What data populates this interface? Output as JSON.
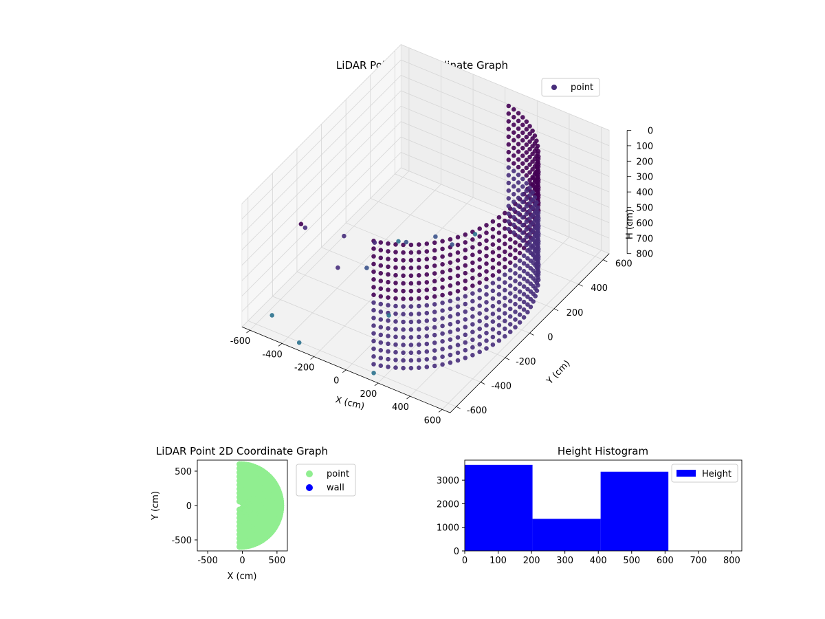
{
  "colors": {
    "scatter3d_cmap": [
      "#440154",
      "#472d7b",
      "#3b528b",
      "#2c728e",
      "#21918c"
    ],
    "scatter2d_point": "#90ee90",
    "scatter2d_wall": "#0000ff",
    "histogram": "#0000ff"
  },
  "chart_data": [
    {
      "type": "scatter3d",
      "title": "LiDAR Point 3D Coordinate Graph",
      "xlabel": "X (cm)",
      "ylabel": "Y (cm)",
      "zlabel": "H (cm)",
      "xlim": [
        -650,
        650
      ],
      "ylim": [
        -650,
        650
      ],
      "zlim": [
        0,
        800
      ],
      "z_inverted": true,
      "xticks": [
        -600,
        -400,
        -200,
        0,
        200,
        400,
        600
      ],
      "yticks": [
        -600,
        -400,
        -200,
        0,
        200,
        400,
        600
      ],
      "zticks": [
        0,
        100,
        200,
        300,
        400,
        500,
        600,
        700,
        800
      ],
      "grid": true,
      "legend": {
        "position": "top-right",
        "entries": [
          "point"
        ]
      },
      "series": [
        {
          "name": "point",
          "description_values": "curved wall arc: x = 560*cos(t), y = 560*sin(t) for t in -80..80 deg, h from 0 to 800",
          "arc": {
            "radius": 560,
            "angle_start_deg": -80,
            "angle_end_deg": 80,
            "h_range": [
              0,
              800
            ]
          },
          "sample_points": [
            [
              -380,
              -520,
              120
            ],
            [
              -400,
              -460,
              200
            ],
            [
              -120,
              -560,
              260
            ],
            [
              -280,
              -300,
              330
            ],
            [
              -150,
              -220,
              380
            ],
            [
              -100,
              -350,
              420
            ],
            [
              -60,
              -80,
              450
            ],
            [
              120,
              60,
              500
            ],
            [
              -30,
              120,
              560
            ],
            [
              -200,
              40,
              600
            ],
            [
              80,
              300,
              640
            ],
            [
              30,
              -340,
              680
            ],
            [
              -500,
              -600,
              700
            ],
            [
              -300,
              -640,
              760
            ],
            [
              150,
              -620,
              780
            ]
          ]
        }
      ]
    },
    {
      "type": "scatter",
      "title": "LiDAR Point 2D Coordinate Graph",
      "xlabel": "X (cm)",
      "ylabel": "Y (cm)",
      "xlim": [
        -650,
        650
      ],
      "ylim": [
        -660,
        660
      ],
      "xticks": [
        -500,
        0,
        500
      ],
      "yticks": [
        -500,
        0,
        500
      ],
      "legend": {
        "position": "outside-right",
        "entries": [
          "point",
          "wall"
        ]
      },
      "series": [
        {
          "name": "point",
          "description": "filled half-disc of points, x >= -600, radius ~600"
        },
        {
          "name": "wall",
          "points": []
        }
      ]
    },
    {
      "type": "bar",
      "title": "Height Histogram",
      "xlabel": "",
      "ylabel": "",
      "xlim": [
        0,
        830
      ],
      "ylim": [
        0,
        3850
      ],
      "xticks": [
        0,
        100,
        200,
        300,
        400,
        500,
        600,
        700,
        800
      ],
      "yticks": [
        0,
        1000,
        2000,
        3000
      ],
      "legend": {
        "position": "top-right",
        "entries": [
          "Height"
        ]
      },
      "bins": [
        [
          0,
          203
        ],
        [
          203,
          407
        ],
        [
          407,
          610
        ],
        [
          610,
          813
        ]
      ],
      "values": [
        3650,
        1360,
        3360,
        0
      ]
    }
  ]
}
